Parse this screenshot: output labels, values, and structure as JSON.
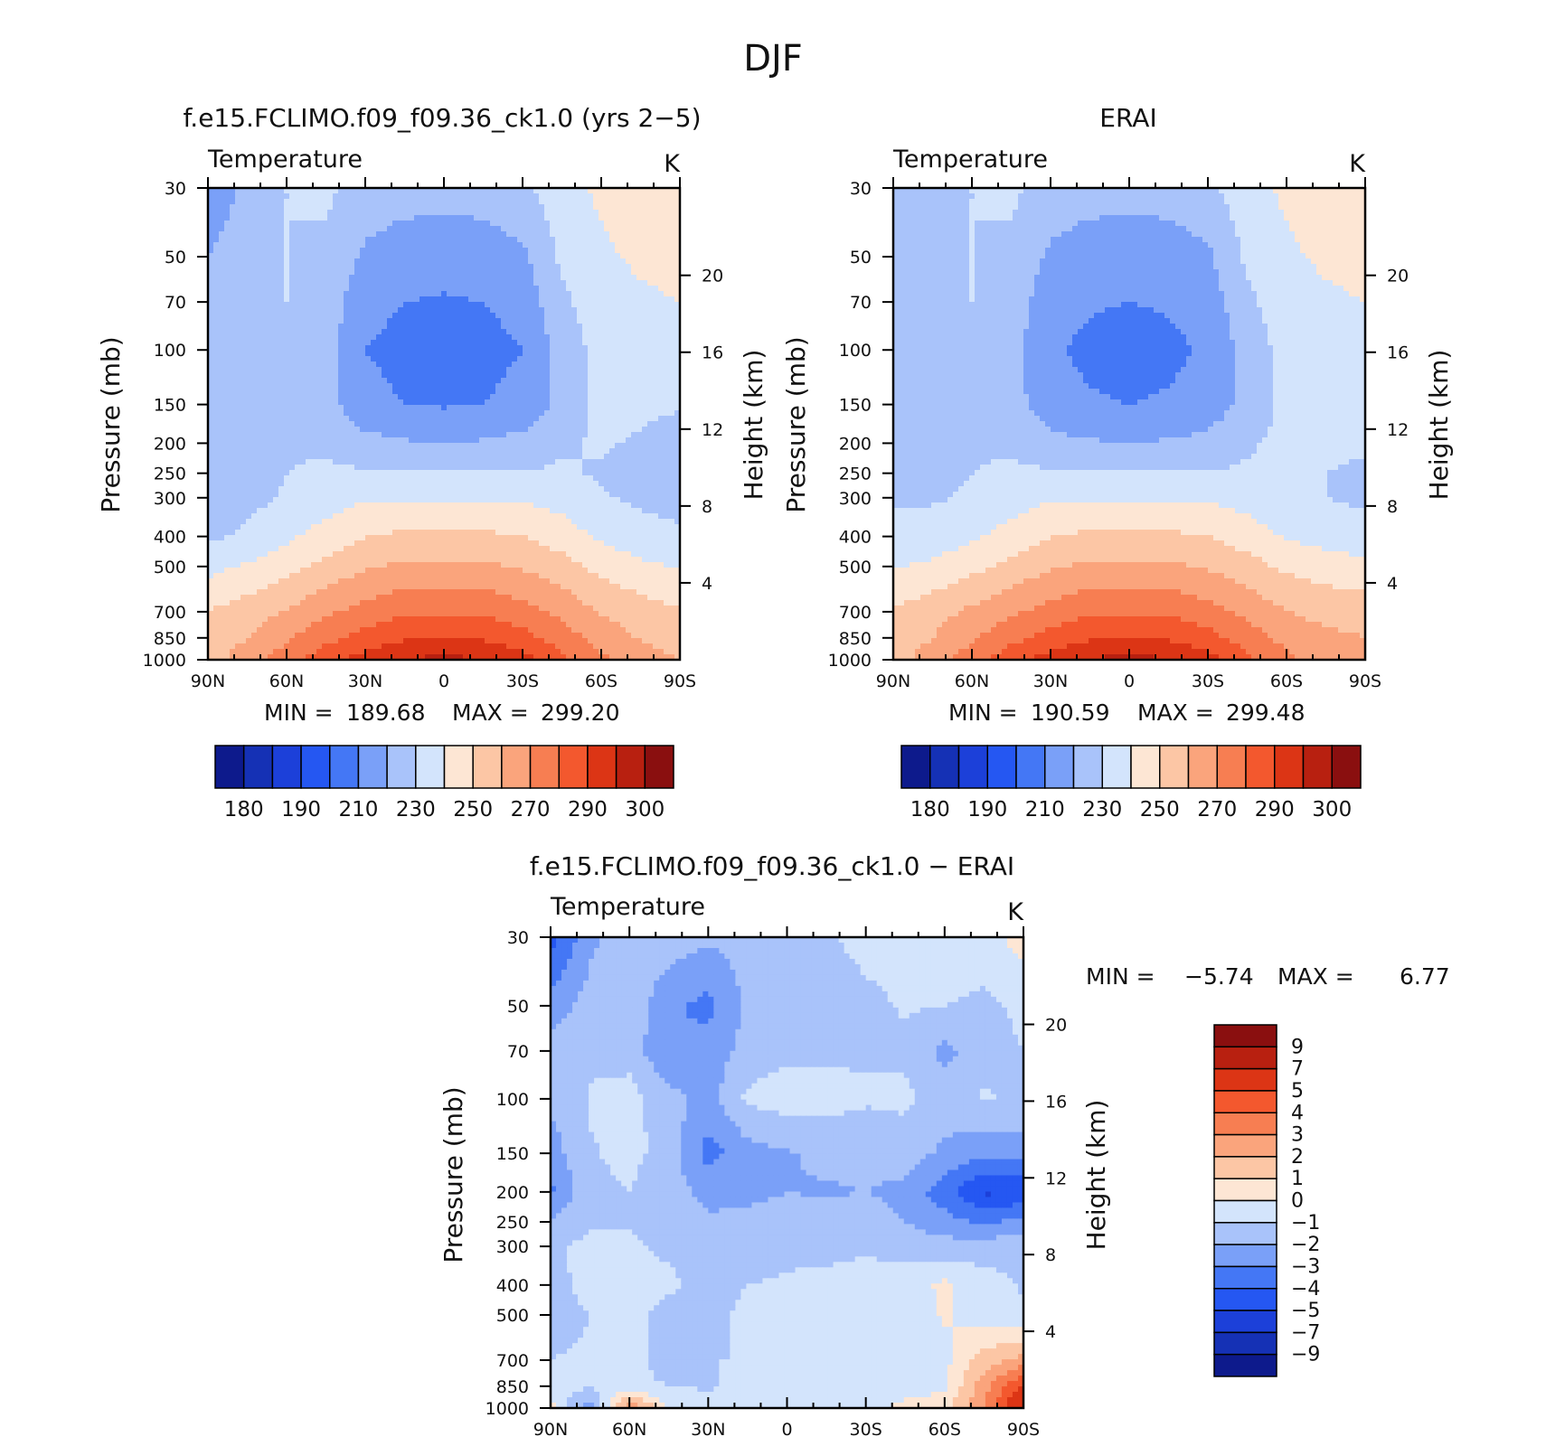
{
  "page": {
    "main_title": "DJF"
  },
  "colors": {
    "temp_levels": [
      "#0d1a8c",
      "#1531b5",
      "#1c40d9",
      "#2557f2",
      "#4477f5",
      "#7aa0f8",
      "#a9c3fa",
      "#d3e4fc",
      "#fde6d4",
      "#fcc6a5",
      "#faa47c",
      "#f77e52",
      "#f3582e",
      "#dc3515",
      "#b82010",
      "#8a0f0f"
    ],
    "diff_levels": [
      "#0d1a8c",
      "#1531b5",
      "#1c40d9",
      "#2557f2",
      "#4477f5",
      "#7aa0f8",
      "#a9c3fa",
      "#d3e4fc",
      "#fde6d4",
      "#fcc6a5",
      "#faa47c",
      "#f77e52",
      "#f3582e",
      "#dc3515",
      "#b82010",
      "#8a0f0f"
    ]
  },
  "chart_data": [
    {
      "type": "heatmap",
      "title": "f.e15.FCLIMO.f09_f09.36_ck1.0 (yrs 2−5)",
      "subtitle": "Temperature",
      "units": "K",
      "xlabel": "",
      "ylabel": "Pressure (mb)",
      "ylabel_right": "Height (km)",
      "x_ticks": [
        "90N",
        "60N",
        "30N",
        "0",
        "30S",
        "60S",
        "90S"
      ],
      "y_ticks": [
        "30",
        "50",
        "70",
        "100",
        "150",
        "200",
        "250",
        "300",
        "400",
        "500",
        "700",
        "850",
        "1000"
      ],
      "y_ticks_right": [
        "20",
        "16",
        "12",
        "8",
        "4"
      ],
      "y_scale": "log",
      "ylim": [
        1000,
        30
      ],
      "xlim": [
        90,
        -90
      ],
      "min_label": "MIN =",
      "min_value": "189.68",
      "max_label": "MAX =",
      "max_value": "299.20",
      "colorbar_labels": [
        "180",
        "190",
        "210",
        "230",
        "250",
        "270",
        "290",
        "300"
      ],
      "field": {
        "lat": [
          90,
          75,
          60,
          45,
          30,
          15,
          0,
          -15,
          -30,
          -45,
          -60,
          -75,
          -90
        ],
        "plev": [
          30,
          50,
          70,
          100,
          150,
          200,
          250,
          300,
          400,
          500,
          700,
          850,
          1000
        ],
        "values": [
          [
            205,
            212,
            220,
            222,
            216,
            214,
            214,
            214,
            218,
            226,
            232,
            236,
            237
          ],
          [
            210,
            214,
            220,
            218,
            208,
            205,
            204,
            205,
            208,
            222,
            228,
            232,
            234
          ],
          [
            213,
            215,
            220,
            216,
            203,
            200,
            199,
            200,
            203,
            218,
            225,
            228,
            230
          ],
          [
            214,
            216,
            219,
            214,
            200,
            197,
            195,
            197,
            200,
            214,
            224,
            226,
            226
          ],
          [
            216,
            215,
            218,
            214,
            203,
            200,
            199,
            200,
            203,
            213,
            223,
            222,
            221
          ],
          [
            213,
            215,
            219,
            218,
            213,
            211,
            210,
            211,
            213,
            219,
            221,
            219,
            215
          ],
          [
            212,
            216,
            220,
            222,
            221,
            221,
            221,
            221,
            221,
            221,
            219,
            216,
            214
          ],
          [
            213,
            217,
            221,
            225,
            229,
            229,
            229,
            229,
            229,
            226,
            221,
            218,
            216
          ],
          [
            218,
            222,
            228,
            234,
            240,
            242,
            242,
            242,
            240,
            235,
            228,
            224,
            222
          ],
          [
            227,
            231,
            236,
            243,
            249,
            252,
            252,
            252,
            249,
            244,
            237,
            232,
            229
          ],
          [
            240,
            245,
            251,
            258,
            264,
            268,
            269,
            268,
            264,
            257,
            249,
            245,
            241
          ],
          [
            244,
            250,
            259,
            267,
            274,
            279,
            281,
            279,
            274,
            265,
            256,
            249,
            245
          ],
          [
            246,
            255,
            265,
            276,
            284,
            290,
            293,
            290,
            284,
            272,
            262,
            255,
            250
          ]
        ]
      }
    },
    {
      "type": "heatmap",
      "title": "ERAI",
      "subtitle": "Temperature",
      "units": "K",
      "xlabel": "",
      "ylabel": "Pressure (mb)",
      "ylabel_right": "Height (km)",
      "x_ticks": [
        "90N",
        "60N",
        "30N",
        "0",
        "30S",
        "60S",
        "90S"
      ],
      "y_ticks": [
        "30",
        "50",
        "70",
        "100",
        "150",
        "200",
        "250",
        "300",
        "400",
        "500",
        "700",
        "850",
        "1000"
      ],
      "y_ticks_right": [
        "20",
        "16",
        "12",
        "8",
        "4"
      ],
      "y_scale": "log",
      "ylim": [
        1000,
        30
      ],
      "xlim": [
        90,
        -90
      ],
      "min_label": "MIN =",
      "min_value": "190.59",
      "max_label": "MAX =",
      "max_value": "299.48",
      "colorbar_labels": [
        "180",
        "190",
        "210",
        "230",
        "250",
        "270",
        "290",
        "300"
      ],
      "field": {
        "lat": [
          90,
          75,
          60,
          45,
          30,
          15,
          0,
          -15,
          -30,
          -45,
          -60,
          -75,
          -90
        ],
        "plev": [
          30,
          50,
          70,
          100,
          150,
          200,
          250,
          300,
          400,
          500,
          700,
          850,
          1000
        ],
        "values": [
          [
            212,
            214,
            220,
            222,
            216,
            214,
            214,
            214,
            218,
            226,
            232,
            236,
            237
          ],
          [
            213,
            215,
            220,
            218,
            208,
            205,
            204,
            205,
            208,
            222,
            228,
            232,
            234
          ],
          [
            214,
            216,
            220,
            216,
            204,
            201,
            200,
            201,
            204,
            218,
            225,
            228,
            230
          ],
          [
            215,
            217,
            219,
            214,
            201,
            198,
            196,
            198,
            201,
            214,
            224,
            226,
            226
          ],
          [
            217,
            216,
            218,
            214,
            204,
            201,
            200,
            201,
            204,
            213,
            223,
            222,
            222
          ],
          [
            218,
            217,
            219,
            218,
            213,
            211,
            210,
            211,
            213,
            219,
            222,
            221,
            221
          ],
          [
            218,
            218,
            220,
            222,
            221,
            221,
            221,
            221,
            221,
            221,
            221,
            220,
            219
          ],
          [
            219,
            219,
            221,
            225,
            229,
            229,
            229,
            229,
            229,
            226,
            222,
            220,
            218
          ],
          [
            222,
            224,
            228,
            234,
            240,
            242,
            242,
            242,
            240,
            235,
            229,
            226,
            224
          ],
          [
            229,
            232,
            237,
            243,
            249,
            252,
            252,
            252,
            249,
            244,
            238,
            235,
            233
          ],
          [
            241,
            246,
            252,
            258,
            264,
            268,
            269,
            268,
            264,
            257,
            250,
            247,
            246
          ],
          [
            244,
            250,
            259,
            267,
            274,
            279,
            281,
            279,
            274,
            265,
            257,
            252,
            250
          ],
          [
            246,
            255,
            265,
            276,
            284,
            290,
            294,
            290,
            284,
            272,
            262,
            256,
            253
          ]
        ]
      }
    },
    {
      "type": "heatmap",
      "title": "f.e15.FCLIMO.f09_f09.36_ck1.0 − ERAI",
      "subtitle": "Temperature",
      "units": "K",
      "xlabel": "",
      "ylabel": "Pressure (mb)",
      "ylabel_right": "Height (km)",
      "x_ticks": [
        "90N",
        "60N",
        "30N",
        "0",
        "30S",
        "60S",
        "90S"
      ],
      "y_ticks": [
        "30",
        "50",
        "70",
        "100",
        "150",
        "200",
        "250",
        "300",
        "400",
        "500",
        "700",
        "850",
        "1000"
      ],
      "y_ticks_right": [
        "20",
        "16",
        "12",
        "8",
        "4"
      ],
      "y_scale": "log",
      "ylim": [
        1000,
        30
      ],
      "xlim": [
        90,
        -90
      ],
      "min_label": "MIN =",
      "min_value": "−5.74",
      "max_label": "MAX =",
      "max_value": "6.77",
      "colorbar_labels": [
        "9",
        "7",
        "5",
        "4",
        "3",
        "2",
        "1",
        "0",
        "−1",
        "−2",
        "−3",
        "−4",
        "−5",
        "−7",
        "−9"
      ],
      "field": {
        "lat": [
          90,
          75,
          60,
          45,
          30,
          15,
          0,
          -15,
          -30,
          -45,
          -60,
          -75,
          -90
        ],
        "plev": [
          30,
          50,
          70,
          100,
          150,
          200,
          250,
          300,
          400,
          500,
          700,
          850,
          1000
        ],
        "values": [
          [
            -4.5,
            -2.2,
            -1.6,
            -1.4,
            -1.8,
            -1.6,
            -1.3,
            -1.2,
            -0.6,
            -0.4,
            -0.3,
            -0.5,
            0.5
          ],
          [
            -2.6,
            -1.6,
            -1.2,
            -2.8,
            -3.3,
            -1.8,
            -1.4,
            -1.6,
            -1.3,
            -0.9,
            -1.0,
            -1.2,
            -0.8
          ],
          [
            -1.6,
            -1.2,
            -1.4,
            -3.0,
            -2.6,
            -1.6,
            -1.2,
            -1.2,
            -1.1,
            -1.2,
            -2.3,
            -1.4,
            -1.0
          ],
          [
            -1.8,
            -0.9,
            -0.6,
            -1.6,
            -2.4,
            -0.8,
            -0.5,
            -0.6,
            -0.9,
            -0.8,
            -1.5,
            -0.9,
            -1.2
          ],
          [
            -2.5,
            -1.1,
            -0.7,
            -1.4,
            -3.4,
            -2.4,
            -2.1,
            -1.8,
            -1.6,
            -1.5,
            -2.2,
            -2.8,
            -2.6
          ],
          [
            -3.2,
            -1.3,
            -1.0,
            -1.7,
            -2.2,
            -2.2,
            -2.0,
            -2.1,
            -2.0,
            -2.3,
            -3.6,
            -5.2,
            -4.8
          ],
          [
            -1.9,
            -1.2,
            -1.1,
            -1.5,
            -1.9,
            -1.8,
            -1.7,
            -1.6,
            -1.5,
            -2.0,
            -2.6,
            -3.2,
            -2.6
          ],
          [
            -1.2,
            -0.7,
            -0.8,
            -1.2,
            -1.4,
            -1.3,
            -1.2,
            -1.2,
            -1.1,
            -1.4,
            -1.6,
            -1.5,
            -1.2
          ],
          [
            -1.4,
            -0.6,
            -0.5,
            -0.8,
            -1.3,
            -1.0,
            -0.9,
            -0.8,
            -0.7,
            -0.5,
            0.2,
            -0.6,
            -1.1
          ],
          [
            -1.6,
            -1.0,
            -0.7,
            -1.4,
            -1.3,
            -0.8,
            -0.6,
            -0.4,
            -0.3,
            -0.5,
            0.1,
            -0.5,
            -0.9
          ],
          [
            -1.0,
            -0.8,
            -0.8,
            -1.2,
            -1.0,
            -1.0,
            -0.5,
            -0.2,
            -0.3,
            -0.4,
            -0.3,
            1.5,
            2.4
          ],
          [
            -0.8,
            -0.8,
            -0.9,
            -1.0,
            -1.1,
            -0.8,
            -0.6,
            -0.7,
            -0.6,
            -0.5,
            -0.1,
            2.6,
            5.2
          ],
          [
            0.4,
            -2.8,
            3.2,
            -0.2,
            -0.6,
            -0.4,
            -0.3,
            -0.2,
            -0.6,
            0.3,
            0.5,
            3.1,
            6.7
          ]
        ]
      }
    }
  ]
}
